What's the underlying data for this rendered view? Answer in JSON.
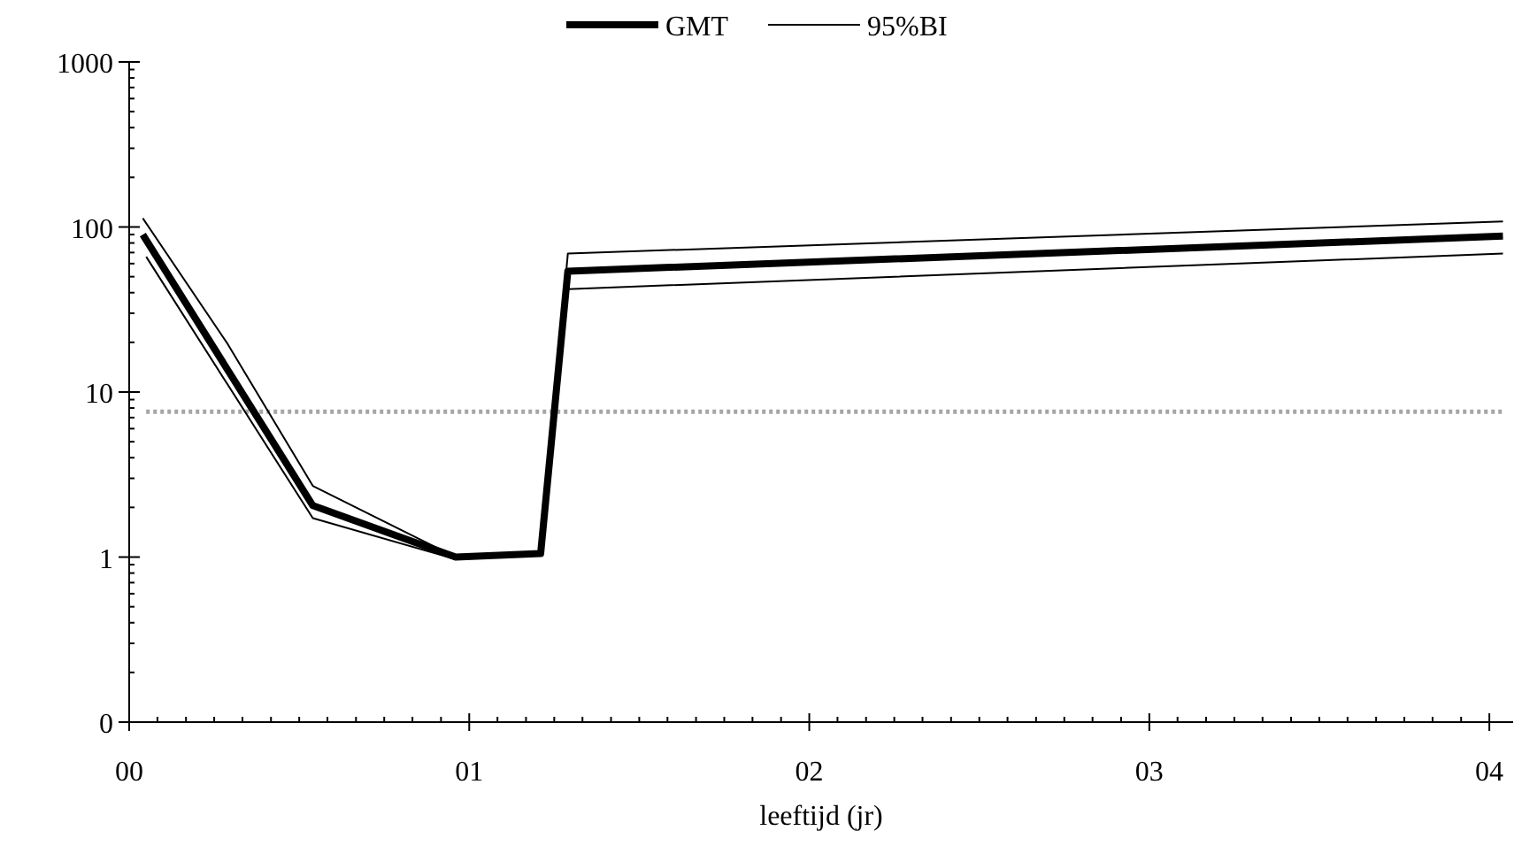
{
  "chart_data": {
    "type": "line",
    "xlabel": "leeftijd (jr)",
    "log": "y",
    "legend": "top",
    "grid": false,
    "marker": "none",
    "line_style": "solid",
    "xlim": [
      0,
      4.07
    ],
    "ylim": [
      0.1,
      1000
    ],
    "xticks": [
      {
        "value": 0,
        "label": "00"
      },
      {
        "value": 0.083,
        "label": null
      },
      {
        "value": 0.167,
        "label": null
      },
      {
        "value": 0.25,
        "label": null
      },
      {
        "value": 0.333,
        "label": null
      },
      {
        "value": 0.417,
        "label": null
      },
      {
        "value": 0.5,
        "label": null
      },
      {
        "value": 0.583,
        "label": null
      },
      {
        "value": 0.667,
        "label": null
      },
      {
        "value": 0.75,
        "label": null
      },
      {
        "value": 0.833,
        "label": null
      },
      {
        "value": 0.917,
        "label": null
      },
      {
        "value": 1,
        "label": "01"
      },
      {
        "value": 1.083,
        "label": null
      },
      {
        "value": 1.167,
        "label": null
      },
      {
        "value": 1.25,
        "label": null
      },
      {
        "value": 1.333,
        "label": null
      },
      {
        "value": 1.417,
        "label": null
      },
      {
        "value": 1.5,
        "label": null
      },
      {
        "value": 1.583,
        "label": null
      },
      {
        "value": 1.667,
        "label": null
      },
      {
        "value": 1.75,
        "label": null
      },
      {
        "value": 1.833,
        "label": null
      },
      {
        "value": 1.917,
        "label": null
      },
      {
        "value": 2,
        "label": "02"
      },
      {
        "value": 2.083,
        "label": null
      },
      {
        "value": 2.167,
        "label": null
      },
      {
        "value": 2.25,
        "label": null
      },
      {
        "value": 2.333,
        "label": null
      },
      {
        "value": 2.417,
        "label": null
      },
      {
        "value": 2.5,
        "label": null
      },
      {
        "value": 2.583,
        "label": null
      },
      {
        "value": 2.667,
        "label": null
      },
      {
        "value": 2.75,
        "label": null
      },
      {
        "value": 2.833,
        "label": null
      },
      {
        "value": 2.917,
        "label": null
      },
      {
        "value": 3,
        "label": "03"
      },
      {
        "value": 3.083,
        "label": null
      },
      {
        "value": 3.167,
        "label": null
      },
      {
        "value": 3.25,
        "label": null
      },
      {
        "value": 3.333,
        "label": null
      },
      {
        "value": 3.417,
        "label": null
      },
      {
        "value": 3.5,
        "label": null
      },
      {
        "value": 3.583,
        "label": null
      },
      {
        "value": 3.667,
        "label": null
      },
      {
        "value": 3.75,
        "label": null
      },
      {
        "value": 3.833,
        "label": null
      },
      {
        "value": 3.917,
        "label": null
      },
      {
        "value": 4,
        "label": "04"
      }
    ],
    "yticks": [
      {
        "value": 0.1,
        "label": "0"
      },
      {
        "value": 0.2,
        "label": null
      },
      {
        "value": 0.3,
        "label": null
      },
      {
        "value": 0.4,
        "label": null
      },
      {
        "value": 0.5,
        "label": null
      },
      {
        "value": 0.6,
        "label": null
      },
      {
        "value": 0.7,
        "label": null
      },
      {
        "value": 0.8,
        "label": null
      },
      {
        "value": 0.9,
        "label": null
      },
      1,
      {
        "value": 2,
        "label": null
      },
      {
        "value": 3,
        "label": null
      },
      {
        "value": 4,
        "label": null
      },
      {
        "value": 5,
        "label": null
      },
      {
        "value": 6,
        "label": null
      },
      {
        "value": 7,
        "label": null
      },
      {
        "value": 8,
        "label": null
      },
      {
        "value": 9,
        "label": null
      },
      10,
      {
        "value": 20,
        "label": null
      },
      {
        "value": 30,
        "label": null
      },
      {
        "value": 40,
        "label": null
      },
      {
        "value": 50,
        "label": null
      },
      {
        "value": 60,
        "label": null
      },
      {
        "value": 70,
        "label": null
      },
      {
        "value": 80,
        "label": null
      },
      {
        "value": 90,
        "label": null
      },
      100,
      {
        "value": 200,
        "label": null
      },
      {
        "value": 300,
        "label": null
      },
      {
        "value": 400,
        "label": null
      },
      {
        "value": 500,
        "label": null
      },
      {
        "value": 600,
        "label": null
      },
      {
        "value": 700,
        "label": null
      },
      {
        "value": 800,
        "label": null
      },
      {
        "value": 900,
        "label": null
      },
      1000
    ],
    "series": [
      {
        "name": "GMT",
        "color": "#000000",
        "x": [
          0.04,
          0.54,
          0.96,
          1.21,
          1.29,
          4.04
        ],
        "values": [
          90,
          2.05,
          1.0,
          1.05,
          54,
          88
        ]
      },
      {
        "name": "95%BI",
        "color": "#000000",
        "x": [
          0.04,
          0.29,
          0.54,
          0.96,
          1.21,
          1.29,
          4.04
        ],
        "values": [
          113,
          19.5,
          2.7,
          1.0,
          1.05,
          69,
          108
        ]
      },
      {
        "color": "#000000",
        "x": [
          0.05,
          0.54,
          0.96,
          1.21,
          1.29,
          4.04
        ],
        "values": [
          66,
          1.72,
          0.97,
          1.03,
          42,
          69
        ]
      }
    ],
    "ref_lines": [
      {
        "axis": "y",
        "value": 7.6,
        "color": "#a6a6a6",
        "line_style": "dotted"
      }
    ]
  }
}
